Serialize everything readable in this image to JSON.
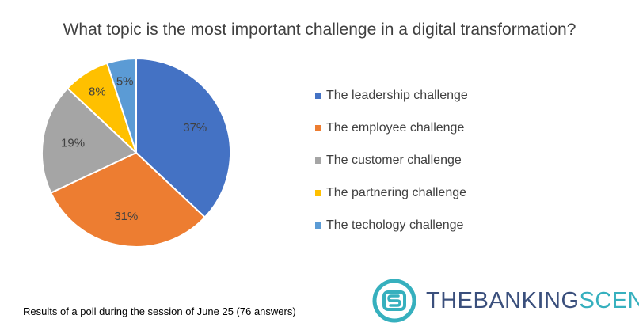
{
  "chart_data": {
    "type": "pie",
    "title": "What topic is the most important challenge in a digital transformation?",
    "slices": [
      {
        "label": "The leadership challenge",
        "value": 37,
        "display": "37%",
        "color": "#4472C4"
      },
      {
        "label": "The employee challenge",
        "value": 31,
        "display": "31%",
        "color": "#ED7D31"
      },
      {
        "label": "The customer challenge",
        "value": 19,
        "display": "19%",
        "color": "#A5A5A5"
      },
      {
        "label": "The partnering challenge",
        "value": 8,
        "display": "8%",
        "color": "#FFC000"
      },
      {
        "label": "The techology challenge",
        "value": 5,
        "display": "5%",
        "color": "#5B9BD5"
      }
    ],
    "legend_position": "right"
  },
  "footnote": "Results of a poll during the session of June 25 (76 answers)",
  "brand": {
    "prefix": "THEBANKING",
    "suffix": "SCENE",
    "logo_icon": "banking-scene-logo-icon"
  }
}
